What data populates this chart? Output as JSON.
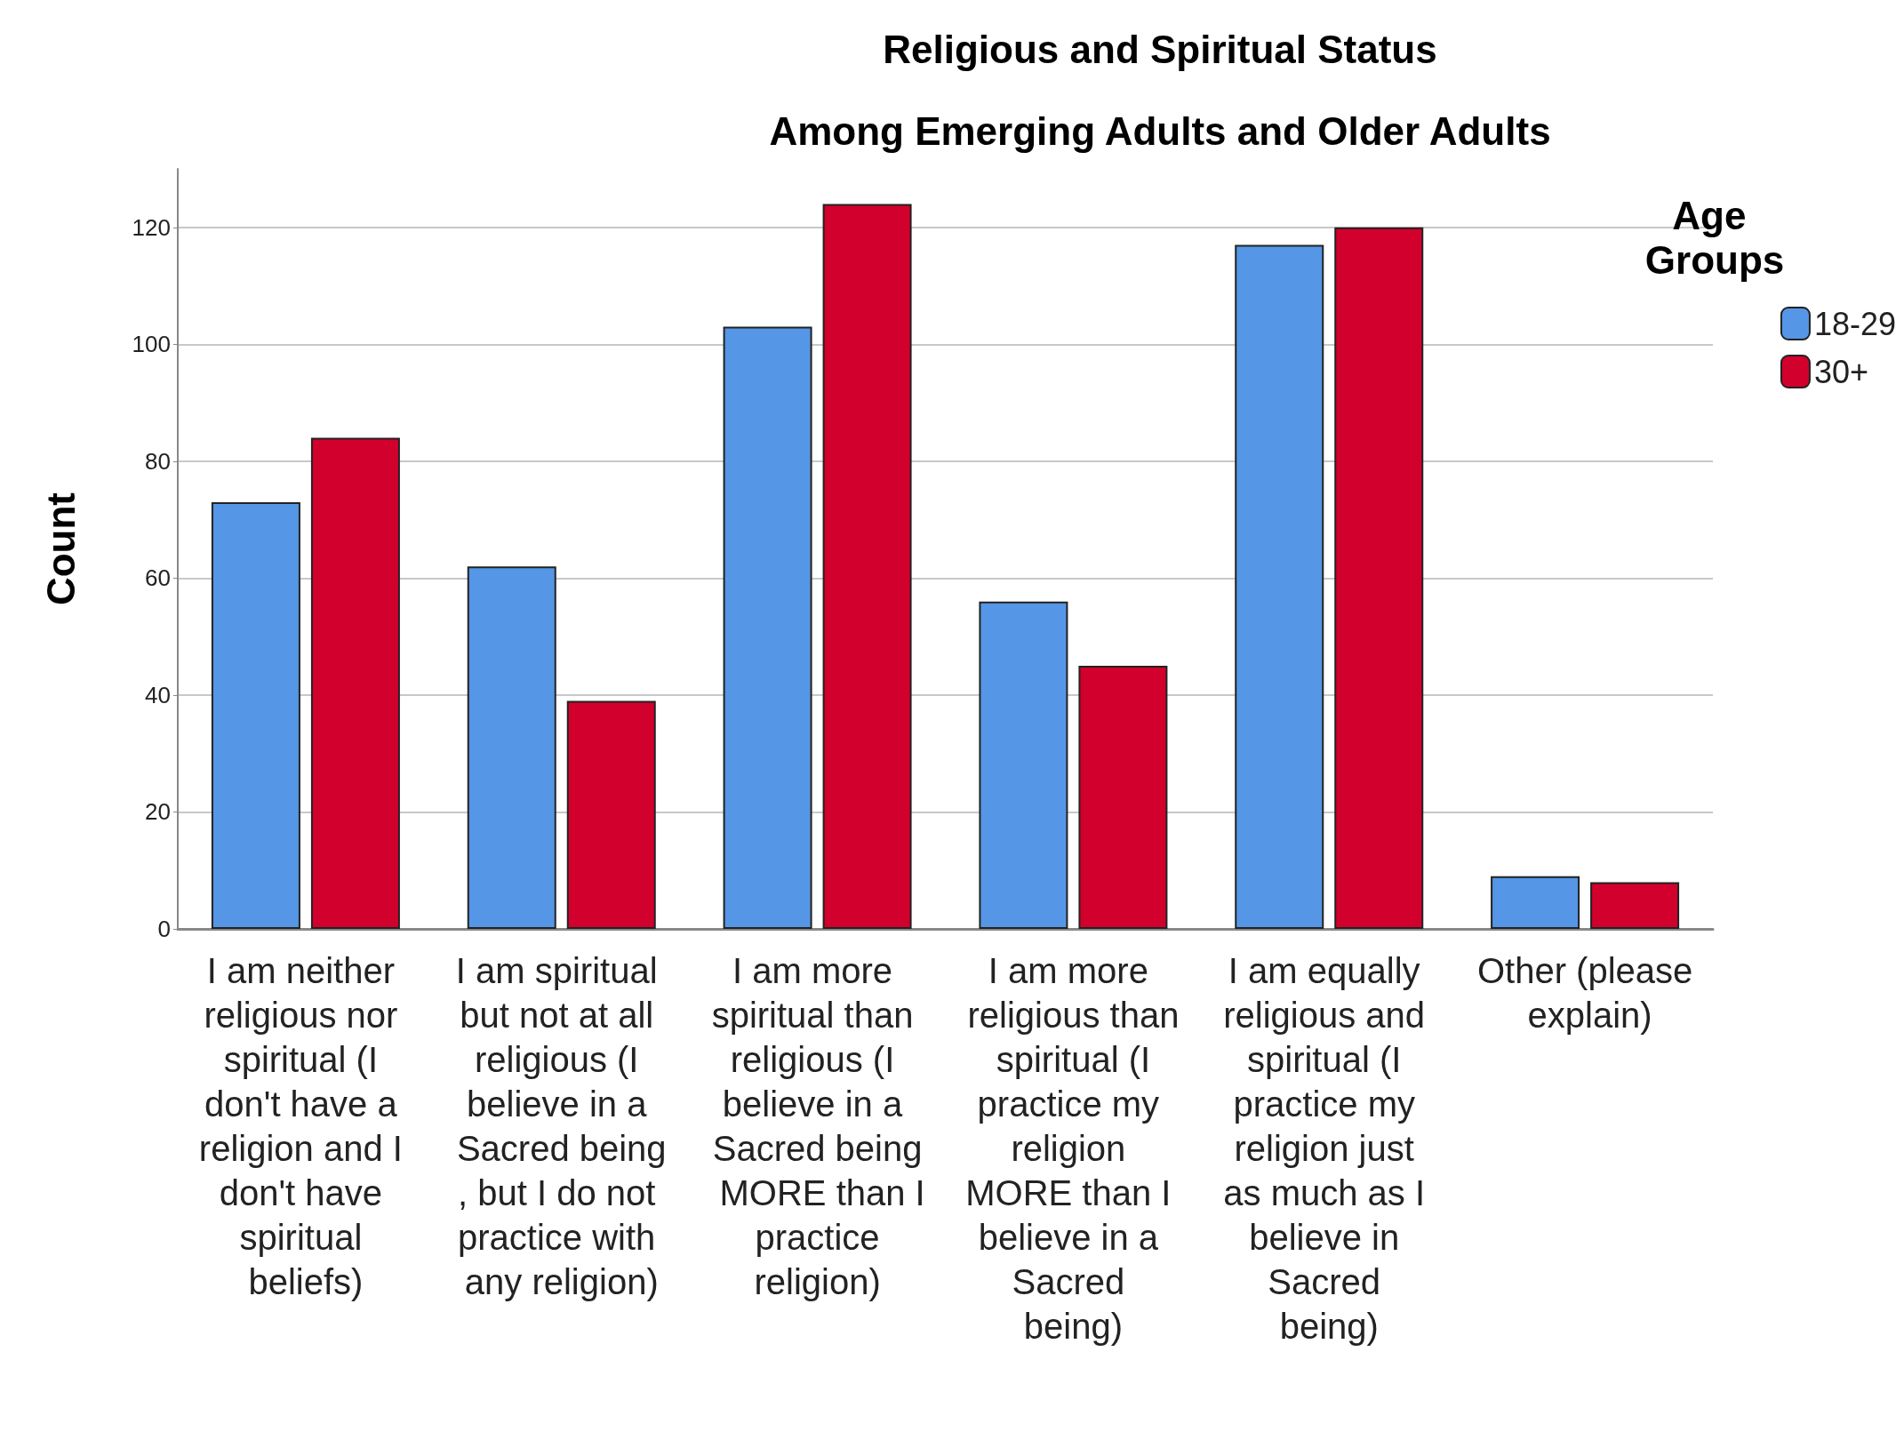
{
  "chart_data": {
    "type": "bar",
    "title": "Religious and Spiritual Status",
    "subtitle": "Among Emerging Adults and Older Adults",
    "ylabel": "Count",
    "legend_title": "Age Groups",
    "categories": [
      "I am neither religious nor spiritual (I don't have a religion and I don't have spiritual beliefs)",
      "I am spiritual but not at all religious (I believe in a Sacred being, but I do not practice with any religion)",
      "I am more spiritual than religious (I believe in a Sacred being MORE than I practice religion)",
      "I am more religious than spiritual (I practice my religion MORE than I believe in a Sacred being)",
      "I am equally religious and spiritual (I practice my religion just as much as I believe in Sacred being)",
      "Other (please explain)"
    ],
    "series": [
      {
        "name": "18-29",
        "color": "#5596e6",
        "values": [
          73,
          62,
          103,
          56,
          117,
          9
        ]
      },
      {
        "name": "30+",
        "color": "#d2002c",
        "values": [
          84,
          39,
          124,
          45,
          120,
          8
        ]
      }
    ],
    "ylim": [
      0,
      130
    ],
    "yticks": [
      0,
      20,
      40,
      60,
      80,
      100,
      120
    ],
    "grid": "y",
    "legend": "top right"
  }
}
